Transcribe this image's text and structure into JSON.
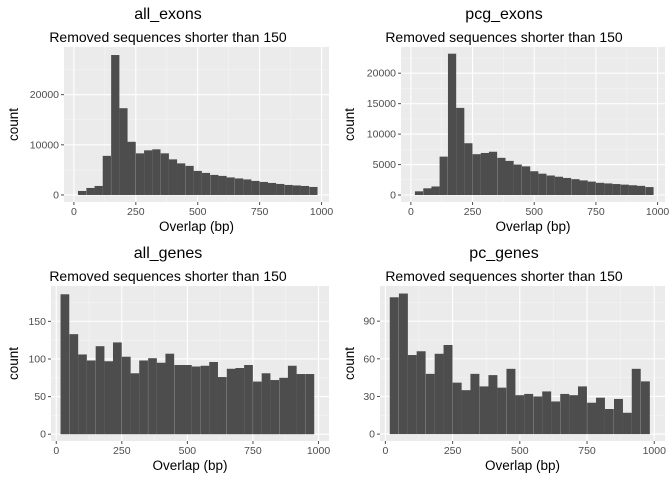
{
  "colors": {
    "panel_bg": "#ebebeb",
    "grid_major": "#ffffff",
    "grid_minor": "#f4f4f4",
    "bar": "#4d4d4d",
    "tick": "#4d4d4d"
  },
  "chart_data": [
    {
      "type": "bar",
      "title": "all_exons",
      "subtitle": "Removed sequences shorter than 150",
      "xlabel": "Overlap (bp)",
      "ylabel": "count",
      "binwidth": 33.3,
      "xlim": [
        -40,
        1030
      ],
      "ylim": [
        -1400,
        29500
      ],
      "x_ticks": [
        0,
        250,
        500,
        750,
        1000
      ],
      "y_ticks": [
        0,
        10000,
        20000
      ],
      "x_tick_labels": [
        "0",
        "250",
        "500",
        "750",
        "1000"
      ],
      "y_tick_labels": [
        "0",
        "10000",
        "20000"
      ],
      "grid": true,
      "x": [
        33,
        67,
        100,
        133,
        167,
        200,
        233,
        267,
        300,
        333,
        367,
        400,
        433,
        467,
        500,
        533,
        567,
        600,
        633,
        667,
        700,
        733,
        767,
        800,
        833,
        867,
        900,
        933,
        967
      ],
      "values": [
        800,
        1400,
        1800,
        7800,
        27900,
        17300,
        10600,
        8300,
        8900,
        9100,
        8300,
        7100,
        6300,
        5800,
        4800,
        4400,
        4000,
        3800,
        3500,
        3300,
        3100,
        2800,
        2600,
        2400,
        2200,
        2000,
        1900,
        1800,
        1600
      ]
    },
    {
      "type": "bar",
      "title": "pcg_exons",
      "subtitle": "Removed sequences shorter than 150",
      "xlabel": "Overlap (bp)",
      "ylabel": "count",
      "binwidth": 33.3,
      "xlim": [
        -40,
        1030
      ],
      "ylim": [
        -1150,
        24300
      ],
      "x_ticks": [
        0,
        250,
        500,
        750,
        1000
      ],
      "y_ticks": [
        0,
        5000,
        10000,
        15000,
        20000
      ],
      "x_tick_labels": [
        "0",
        "250",
        "500",
        "750",
        "1000"
      ],
      "y_tick_labels": [
        "0",
        "5000",
        "10000",
        "15000",
        "20000"
      ],
      "grid": true,
      "x": [
        33,
        67,
        100,
        133,
        167,
        200,
        233,
        267,
        300,
        333,
        367,
        400,
        433,
        467,
        500,
        533,
        567,
        600,
        633,
        667,
        700,
        733,
        767,
        800,
        833,
        867,
        900,
        933,
        967
      ],
      "values": [
        600,
        1100,
        1400,
        6300,
        23200,
        14300,
        8500,
        6700,
        6900,
        7100,
        6100,
        5600,
        5000,
        4700,
        3900,
        3500,
        3200,
        3000,
        2800,
        2600,
        2400,
        2200,
        2000,
        1900,
        1800,
        1700,
        1600,
        1500,
        1300
      ]
    },
    {
      "type": "bar",
      "title": "all_genes",
      "subtitle": "Removed sequences shorter than 150",
      "xlabel": "Overlap (bp)",
      "ylabel": "count",
      "binwidth": 33.3,
      "xlim": [
        -20,
        1040
      ],
      "ylim": [
        -9,
        197
      ],
      "x_ticks": [
        0,
        250,
        500,
        750,
        1000
      ],
      "y_ticks": [
        0,
        50,
        100,
        150
      ],
      "x_tick_labels": [
        "0",
        "250",
        "500",
        "750",
        "1000"
      ],
      "y_tick_labels": [
        "0",
        "50",
        "100",
        "150"
      ],
      "grid": true,
      "x": [
        33,
        67,
        100,
        133,
        167,
        200,
        233,
        267,
        300,
        333,
        367,
        400,
        433,
        467,
        500,
        533,
        567,
        600,
        633,
        667,
        700,
        733,
        767,
        800,
        833,
        867,
        900,
        933,
        967
      ],
      "values": [
        186,
        133,
        106,
        98,
        117,
        97,
        122,
        103,
        81,
        98,
        101,
        95,
        107,
        92,
        92,
        90,
        91,
        96,
        76,
        87,
        88,
        92,
        70,
        81,
        72,
        75,
        91,
        80,
        80
      ]
    },
    {
      "type": "bar",
      "title": "pc_genes",
      "subtitle": "Removed sequences shorter than 150",
      "xlabel": "Overlap (bp)",
      "ylabel": "count",
      "binwidth": 33.3,
      "xlim": [
        -20,
        1040
      ],
      "ylim": [
        -5.5,
        118
      ],
      "x_ticks": [
        0,
        250,
        500,
        750,
        1000
      ],
      "y_ticks": [
        0,
        30,
        60,
        90
      ],
      "x_tick_labels": [
        "0",
        "250",
        "500",
        "750",
        "1000"
      ],
      "y_tick_labels": [
        "0",
        "30",
        "60",
        "90"
      ],
      "grid": true,
      "x": [
        33,
        67,
        100,
        133,
        167,
        200,
        233,
        267,
        300,
        333,
        367,
        400,
        433,
        467,
        500,
        533,
        567,
        600,
        633,
        667,
        700,
        733,
        767,
        800,
        833,
        867,
        900,
        933,
        967
      ],
      "values": [
        109,
        112,
        63,
        66,
        48,
        64,
        71,
        41,
        35,
        48,
        38,
        47,
        37,
        52,
        31,
        32,
        30,
        34,
        26,
        32,
        31,
        38,
        25,
        29,
        20,
        28,
        17,
        52,
        42
      ]
    }
  ]
}
